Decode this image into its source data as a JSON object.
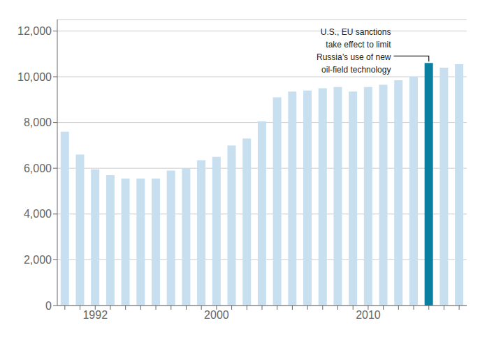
{
  "chart_data": {
    "type": "bar",
    "categories": [
      null,
      null,
      "1992",
      null,
      null,
      null,
      null,
      null,
      null,
      null,
      "2000",
      null,
      null,
      null,
      null,
      null,
      null,
      null,
      null,
      null,
      "2010",
      null,
      null,
      null,
      null,
      null,
      null
    ],
    "values": [
      7600,
      6600,
      5950,
      5700,
      5550,
      5550,
      5550,
      5900,
      6000,
      6350,
      6500,
      7000,
      7300,
      8050,
      9100,
      9350,
      9400,
      9500,
      9550,
      9350,
      9550,
      9650,
      9850,
      10000,
      10600,
      10400,
      10550
    ],
    "colors": [
      "#c8dff0",
      "#c8dff0",
      "#c8dff0",
      "#c8dff0",
      "#c8dff0",
      "#c8dff0",
      "#c8dff0",
      "#c8dff0",
      "#c8dff0",
      "#c8dff0",
      "#c8dff0",
      "#c8dff0",
      "#c8dff0",
      "#c8dff0",
      "#c8dff0",
      "#c8dff0",
      "#c8dff0",
      "#c8dff0",
      "#c8dff0",
      "#c8dff0",
      "#c8dff0",
      "#c8dff0",
      "#c8dff0",
      "#c8dff0",
      "#0b7fa0",
      "#c8dff0",
      "#c8dff0"
    ],
    "ylim": [
      0,
      12500
    ],
    "yticks": [
      0,
      {
        "value": 2000,
        "label": "2,000"
      },
      {
        "value": 4000,
        "label": "4,000"
      },
      {
        "value": 6000,
        "label": "6,000"
      },
      {
        "value": 8000,
        "label": "8,000"
      },
      {
        "value": 10000,
        "label": "10,000"
      },
      {
        "value": 12000,
        "label": "12,000"
      }
    ],
    "grid": true,
    "annotations": [
      "U.S., EU sanctions\ntake effect to limit\nRussia’s use of new\noil-field technology"
    ]
  }
}
